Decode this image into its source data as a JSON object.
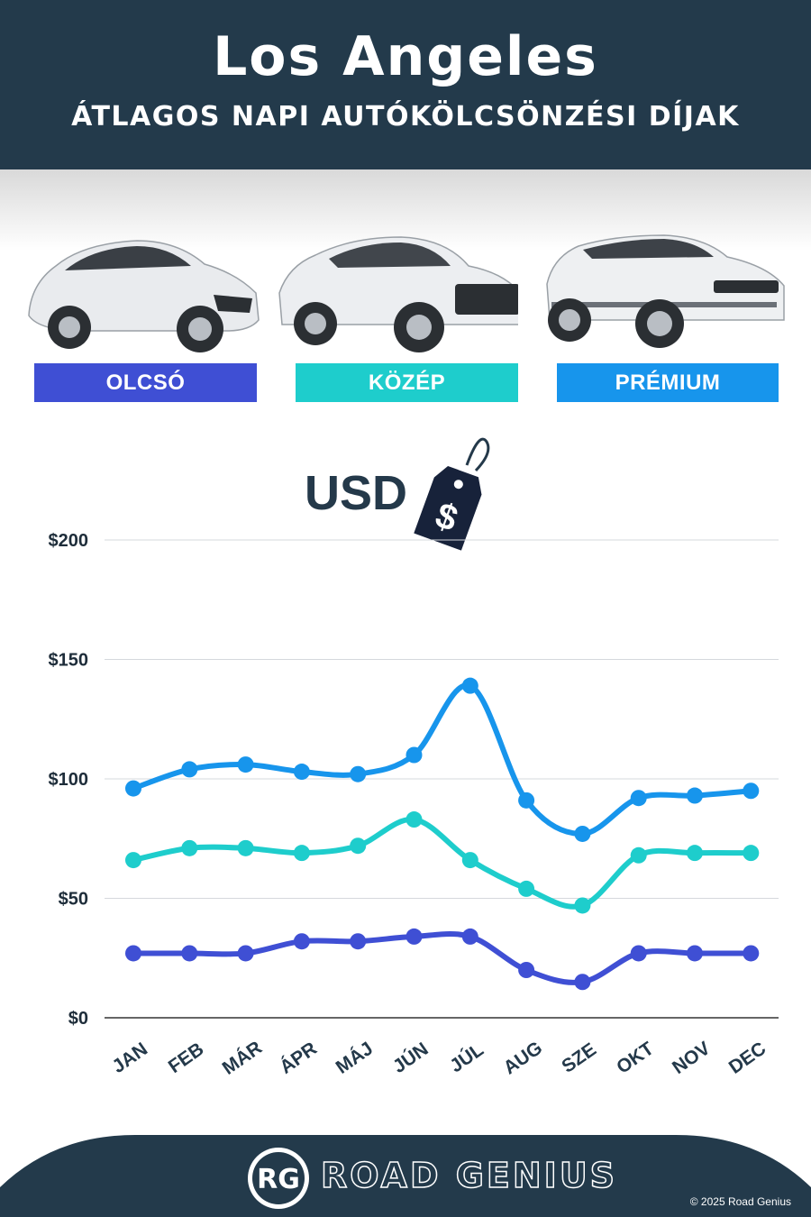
{
  "header": {
    "title": "Los Angeles",
    "subtitle": "ÁTLAGOS NAPI AUTÓKÖLCSÖNZÉSI DÍJAK"
  },
  "tiers": [
    {
      "label": "OLCSÓ",
      "color": "#3f4fd4"
    },
    {
      "label": "KÖZÉP",
      "color": "#1ecdcc"
    },
    {
      "label": "PRÉMIUM",
      "color": "#1795ec"
    }
  ],
  "currency": {
    "label": "USD",
    "tag_symbol": "$"
  },
  "chart_data": {
    "type": "line",
    "categories": [
      "JAN",
      "FEB",
      "MÁR",
      "ÁPR",
      "MÁJ",
      "JÚN",
      "JÚL",
      "AUG",
      "SZE",
      "OKT",
      "NOV",
      "DEC"
    ],
    "series": [
      {
        "name": "PRÉMIUM",
        "color": "#1795ec",
        "values": [
          96,
          104,
          106,
          103,
          102,
          110,
          139,
          91,
          77,
          92,
          93,
          95
        ]
      },
      {
        "name": "KÖZÉP",
        "color": "#1ecdcc",
        "values": [
          66,
          71,
          71,
          69,
          72,
          83,
          66,
          54,
          47,
          68,
          69,
          69
        ]
      },
      {
        "name": "OLCSÓ",
        "color": "#3f4fd4",
        "values": [
          27,
          27,
          27,
          32,
          32,
          34,
          34,
          20,
          15,
          27,
          27,
          27
        ]
      }
    ],
    "yticks": [
      0,
      50,
      100,
      150,
      200
    ],
    "ytick_labels": [
      "$0",
      "$50",
      "$100",
      "$150",
      "$200"
    ],
    "ylim": [
      0,
      200
    ],
    "grid": true
  },
  "footer": {
    "logo_text": "RG",
    "brand": "ROAD GENIUS",
    "copyright": "© 2025 Road Genius"
  }
}
